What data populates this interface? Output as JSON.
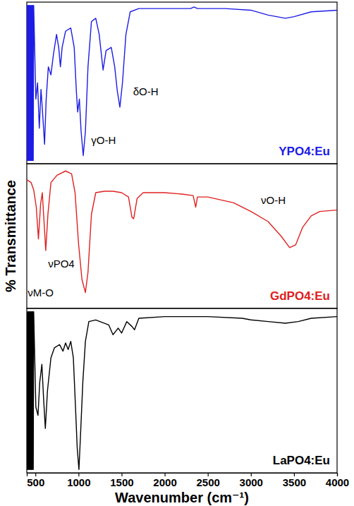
{
  "chart_data": [
    {
      "type": "line",
      "xlim": [
        400,
        4000
      ],
      "ylim": [
        0,
        100
      ],
      "tick_labels": false,
      "legend": "lower right",
      "series": [
        {
          "name": "YPO4:Eu",
          "color": "#1c1ce6",
          "x": [
            400,
            405,
            410,
            415,
            420,
            425,
            430,
            435,
            440,
            445,
            450,
            455,
            460,
            465,
            470,
            475,
            480,
            505,
            525,
            545,
            565,
            585,
            606,
            625,
            650,
            680,
            710,
            745,
            770,
            790,
            810,
            850,
            910,
            950,
            975,
            990,
            1010,
            1030,
            1055,
            1080,
            1110,
            1150,
            1200,
            1240,
            1285,
            1320,
            1380,
            1420,
            1450,
            1480,
            1510,
            1550,
            1600,
            1700,
            2000,
            2300,
            2340,
            2380,
            2700,
            3000,
            3200,
            3400,
            3500,
            3700,
            4000
          ],
          "values": [
            98,
            2,
            98,
            2,
            98,
            2,
            98,
            2,
            98,
            2,
            98,
            2,
            98,
            2,
            98,
            2,
            98,
            40,
            50,
            22,
            46,
            30,
            12,
            40,
            60,
            55,
            68,
            80,
            72,
            60,
            72,
            82,
            84,
            72,
            45,
            32,
            40,
            20,
            5,
            20,
            60,
            88,
            90,
            80,
            58,
            70,
            72,
            60,
            45,
            35,
            50,
            80,
            94,
            96,
            96,
            96,
            97,
            96,
            96,
            95,
            92,
            90,
            91,
            94,
            95
          ]
        }
      ],
      "annotations": [
        {
          "text": "δO-H",
          "x": 1780,
          "y": 44
        },
        {
          "text": "γO-H",
          "x": 1290,
          "y": 14
        }
      ]
    },
    {
      "type": "line",
      "xlim": [
        400,
        4000
      ],
      "ylim": [
        0,
        100
      ],
      "tick_labels": false,
      "legend": "lower right",
      "ylabel": "% Transmittance",
      "series": [
        {
          "name": "GdPO4:Eu",
          "color": "#e02020",
          "x": [
            400,
            450,
            480,
            510,
            535,
            560,
            580,
            600,
            620,
            645,
            680,
            750,
            850,
            920,
            960,
            1000,
            1040,
            1080,
            1110,
            1150,
            1200,
            1300,
            1400,
            1500,
            1580,
            1620,
            1640,
            1680,
            1750,
            2000,
            2200,
            2330,
            2360,
            2380,
            2500,
            2800,
            3000,
            3200,
            3350,
            3450,
            3520,
            3600,
            3700,
            3800,
            4000
          ],
          "values": [
            89,
            87,
            82,
            70,
            48,
            72,
            80,
            60,
            40,
            65,
            87,
            92,
            95,
            93,
            80,
            45,
            20,
            11,
            25,
            65,
            80,
            81,
            81,
            80,
            77,
            63,
            62,
            76,
            80,
            80,
            79,
            78,
            70,
            77,
            77,
            73,
            67,
            60,
            50,
            42,
            44,
            56,
            64,
            67,
            68
          ]
        }
      ],
      "annotations": [
        {
          "text": "νPO4",
          "x": 800,
          "y": 30
        },
        {
          "text": "νM-O",
          "x": 560,
          "y": 10
        },
        {
          "text": "νO-H",
          "x": 3260,
          "y": 74
        }
      ]
    },
    {
      "type": "line",
      "xlim": [
        400,
        4000
      ],
      "ylim": [
        0,
        100
      ],
      "tick_labels": "x",
      "legend": "lower right",
      "xticks": [
        500,
        1000,
        1500,
        2000,
        2500,
        3000,
        3500,
        4000
      ],
      "xlabel": "Wavenumber (cm⁻¹)",
      "series": [
        {
          "name": "LaPO4:Eu",
          "color": "#000000",
          "x": [
            400,
            405,
            410,
            415,
            420,
            425,
            430,
            435,
            440,
            445,
            450,
            455,
            460,
            465,
            470,
            475,
            480,
            505,
            530,
            550,
            575,
            595,
            615,
            640,
            680,
            720,
            780,
            820,
            850,
            880,
            910,
            940,
            965,
            985,
            1005,
            1025,
            1050,
            1080,
            1120,
            1200,
            1350,
            1400,
            1430,
            1460,
            1500,
            1560,
            1620,
            1650,
            1700,
            2000,
            2500,
            2900,
            3000,
            3200,
            3400,
            3550,
            3700,
            4000
          ],
          "values": [
            98,
            2,
            98,
            2,
            98,
            2,
            98,
            2,
            98,
            2,
            98,
            2,
            98,
            2,
            98,
            2,
            98,
            40,
            35,
            55,
            66,
            45,
            27,
            50,
            70,
            76,
            78,
            74,
            79,
            75,
            80,
            70,
            40,
            15,
            2,
            25,
            55,
            80,
            92,
            93,
            90,
            84,
            86,
            88,
            85,
            92,
            89,
            87,
            94,
            95,
            95,
            94,
            93,
            92,
            91,
            92,
            94,
            95
          ]
        }
      ]
    }
  ]
}
